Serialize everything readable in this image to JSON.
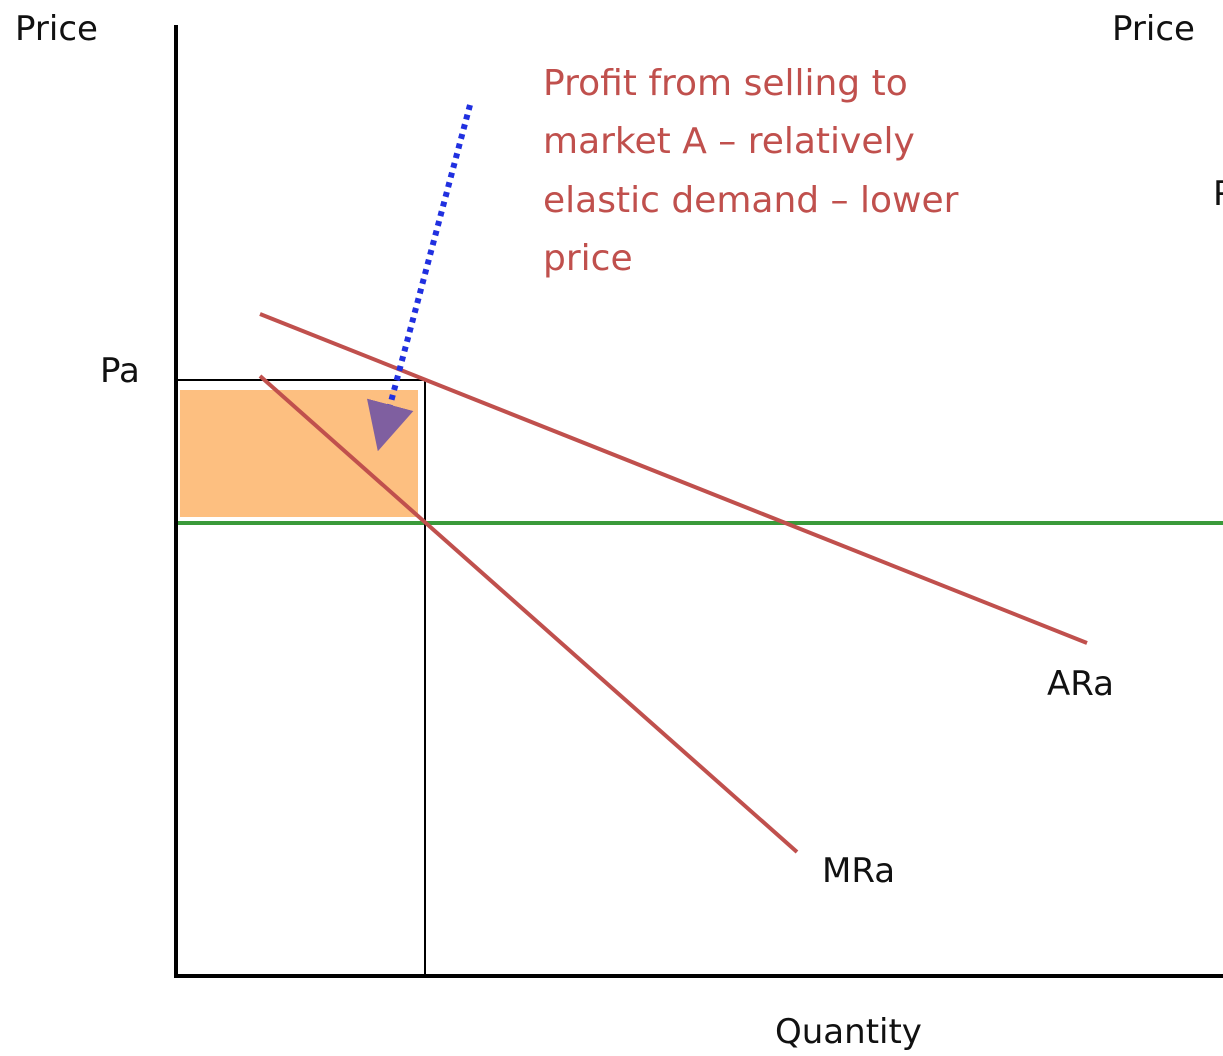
{
  "axes": {
    "y_label_left": "Price",
    "y_label_right": "Price",
    "y_label_right_partial": "P",
    "x_label": "Quantity"
  },
  "labels": {
    "price_level": "Pa",
    "average_revenue": "ARa",
    "marginal_revenue": "MRa"
  },
  "annotation": [
    "Profit from selling to",
    "market A – relatively",
    "elastic demand – lower",
    "price"
  ]
}
